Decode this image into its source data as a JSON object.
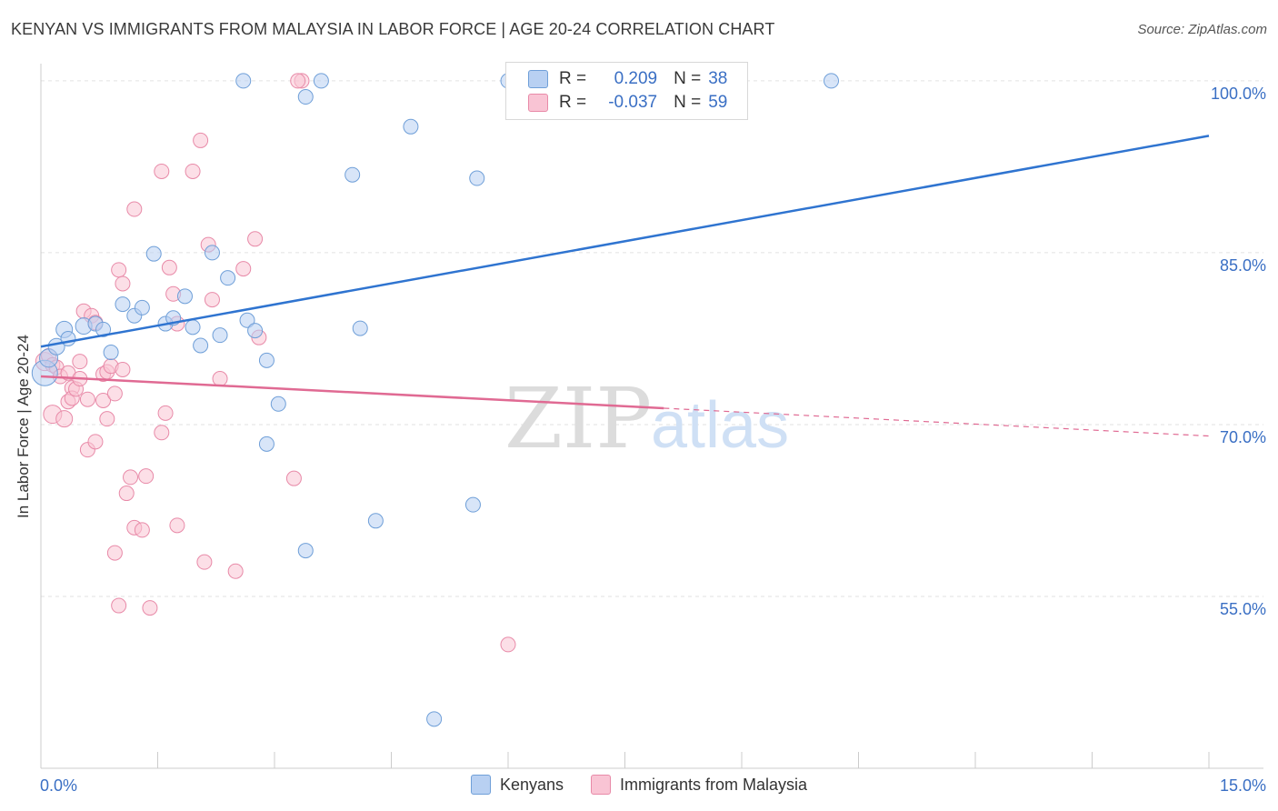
{
  "colors": {
    "kenyans_fill": "#b8d0f2",
    "kenyans_stroke": "#6f9fd8",
    "kenyans_line": "#2f74d0",
    "malaysia_fill": "#f9c4d4",
    "malaysia_stroke": "#e88aa8",
    "malaysia_line": "#e06a93",
    "axis_text": "#3a6fc4",
    "grid": "#e2e2e2"
  },
  "chart_data": {
    "type": "scatter",
    "title": "KENYAN VS IMMIGRANTS FROM MALAYSIA IN LABOR FORCE | AGE 20-24 CORRELATION CHART",
    "source": "Source: ZipAtlas.com",
    "xlabel": "",
    "ylabel": "In Labor Force | Age 20-24",
    "xlim": [
      0,
      15
    ],
    "ylim": [
      40,
      101.5
    ],
    "x_tick_labels": [
      {
        "value": 0,
        "label": "0.0%"
      },
      {
        "value": 15,
        "label": "15.0%"
      }
    ],
    "y_tick_labels": [
      {
        "value": 100,
        "label": "100.0%"
      },
      {
        "value": 85,
        "label": "85.0%"
      },
      {
        "value": 70,
        "label": "70.0%"
      },
      {
        "value": 55,
        "label": "55.0%"
      }
    ],
    "watermark": {
      "zip": "ZIP",
      "atlas": "atlas"
    },
    "legend": [
      {
        "r_label": "R =",
        "r": "0.209",
        "n_label": "N =",
        "n": "38"
      },
      {
        "r_label": "R =",
        "r": "-0.037",
        "n_label": "N =",
        "n": "59"
      }
    ],
    "series": [
      {
        "name": "Kenyans",
        "trend": {
          "x0": 0,
          "y0": 76.8,
          "x1": 15,
          "y1": 95.2,
          "solid_until": 15
        },
        "points": [
          [
            0.05,
            74.5,
            14
          ],
          [
            0.1,
            75.8,
            10
          ],
          [
            0.2,
            76.8,
            9
          ],
          [
            0.3,
            78.3,
            9
          ],
          [
            0.35,
            77.5,
            8
          ],
          [
            0.55,
            78.6,
            9
          ],
          [
            0.7,
            78.8,
            8
          ],
          [
            0.8,
            78.3,
            8
          ],
          [
            0.9,
            76.3,
            8
          ],
          [
            1.05,
            80.5,
            8
          ],
          [
            1.2,
            79.5,
            8
          ],
          [
            1.3,
            80.2,
            8
          ],
          [
            1.45,
            84.9,
            8
          ],
          [
            1.6,
            78.8,
            8
          ],
          [
            1.7,
            79.3,
            8
          ],
          [
            1.85,
            81.2,
            8
          ],
          [
            1.95,
            78.5,
            8
          ],
          [
            2.05,
            76.9,
            8
          ],
          [
            2.2,
            85.0,
            8
          ],
          [
            2.3,
            77.8,
            8
          ],
          [
            2.4,
            82.8,
            8
          ],
          [
            2.6,
            100.0,
            8
          ],
          [
            2.65,
            79.1,
            8
          ],
          [
            2.75,
            78.2,
            8
          ],
          [
            2.9,
            75.6,
            8
          ],
          [
            3.05,
            71.8,
            8
          ],
          [
            2.9,
            68.3,
            8
          ],
          [
            3.4,
            98.6,
            8
          ],
          [
            3.6,
            100.0,
            8
          ],
          [
            3.4,
            59.0,
            8
          ],
          [
            4.0,
            91.8,
            8
          ],
          [
            4.1,
            78.4,
            8
          ],
          [
            4.3,
            61.6,
            8
          ],
          [
            4.75,
            96.0,
            8
          ],
          [
            5.05,
            44.3,
            8
          ],
          [
            5.55,
            63.0,
            8
          ],
          [
            5.6,
            91.5,
            8
          ],
          [
            6.0,
            100.0,
            8
          ],
          [
            10.15,
            100.0,
            8
          ]
        ]
      },
      {
        "name": "Immigrants from Malaysia",
        "trend": {
          "x0": 0,
          "y0": 74.2,
          "x1": 15,
          "y1": 69.0,
          "solid_until": 8.0
        },
        "points": [
          [
            0.05,
            75.5,
            10
          ],
          [
            0.1,
            76.0,
            8
          ],
          [
            0.15,
            75.2,
            8
          ],
          [
            0.15,
            70.9,
            10
          ],
          [
            0.2,
            75.0,
            8
          ],
          [
            0.25,
            74.2,
            8
          ],
          [
            0.3,
            70.5,
            9
          ],
          [
            0.35,
            74.5,
            8
          ],
          [
            0.35,
            72.0,
            8
          ],
          [
            0.4,
            73.2,
            8
          ],
          [
            0.4,
            72.3,
            8
          ],
          [
            0.45,
            73.1,
            8
          ],
          [
            0.5,
            75.5,
            8
          ],
          [
            0.5,
            74.0,
            8
          ],
          [
            0.55,
            79.9,
            8
          ],
          [
            0.6,
            72.2,
            8
          ],
          [
            0.6,
            67.8,
            8
          ],
          [
            0.65,
            79.5,
            8
          ],
          [
            0.7,
            78.9,
            8
          ],
          [
            0.7,
            68.5,
            8
          ],
          [
            0.8,
            72.1,
            8
          ],
          [
            0.8,
            74.4,
            8
          ],
          [
            0.85,
            70.5,
            8
          ],
          [
            0.85,
            74.6,
            8
          ],
          [
            0.9,
            75.1,
            8
          ],
          [
            0.95,
            72.7,
            8
          ],
          [
            0.95,
            58.8,
            8
          ],
          [
            1.0,
            54.2,
            8
          ],
          [
            1.0,
            83.5,
            8
          ],
          [
            1.05,
            82.3,
            8
          ],
          [
            1.05,
            74.8,
            8
          ],
          [
            1.1,
            64.0,
            8
          ],
          [
            1.15,
            65.4,
            8
          ],
          [
            1.2,
            61.0,
            8
          ],
          [
            1.2,
            88.8,
            8
          ],
          [
            1.3,
            60.8,
            8
          ],
          [
            1.35,
            65.5,
            8
          ],
          [
            1.4,
            54.0,
            8
          ],
          [
            1.55,
            92.1,
            8
          ],
          [
            1.55,
            69.3,
            8
          ],
          [
            1.6,
            71.0,
            8
          ],
          [
            1.65,
            83.7,
            8
          ],
          [
            1.7,
            81.4,
            8
          ],
          [
            1.75,
            78.8,
            8
          ],
          [
            1.75,
            61.2,
            8
          ],
          [
            1.95,
            92.1,
            8
          ],
          [
            2.05,
            94.8,
            8
          ],
          [
            2.1,
            58.0,
            8
          ],
          [
            2.15,
            85.7,
            8
          ],
          [
            2.2,
            80.9,
            8
          ],
          [
            2.3,
            74.0,
            8
          ],
          [
            2.5,
            57.2,
            8
          ],
          [
            2.6,
            83.6,
            8
          ],
          [
            2.75,
            86.2,
            8
          ],
          [
            2.8,
            77.6,
            8
          ],
          [
            3.25,
            65.3,
            8
          ],
          [
            3.35,
            100.0,
            8
          ],
          [
            6.0,
            50.8,
            8
          ],
          [
            3.3,
            100.0,
            8
          ]
        ]
      }
    ]
  },
  "bottom_legend": [
    {
      "label": "Kenyans"
    },
    {
      "label": "Immigrants from Malaysia"
    }
  ]
}
